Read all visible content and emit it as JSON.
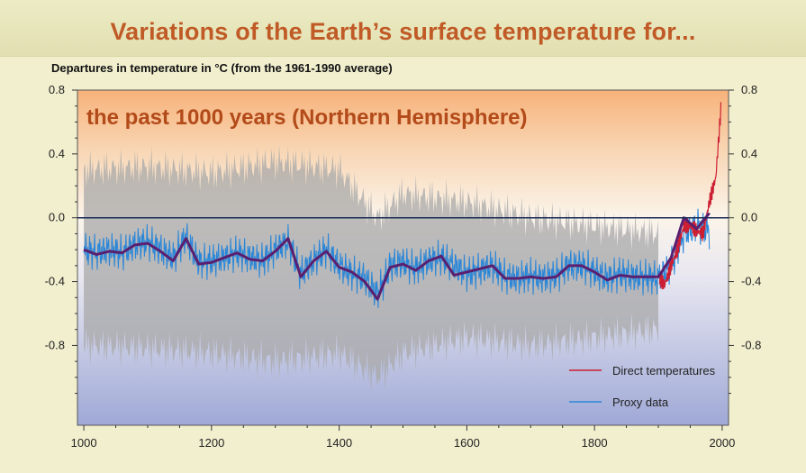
{
  "header": {
    "title": "Variations of the Earth’s surface temperature for...",
    "ylabel": "Departures in temperature in °C (from the 1961-1990 average)"
  },
  "chart_data": {
    "type": "line",
    "title": "Variations of the Earth’s surface temperature for...",
    "subtitle": "the past 1000 years (Northern Hemisphere)",
    "xlabel": "",
    "ylabel": "Departures in temperature in °C (from the 1961-1990 average)",
    "xlim": [
      990,
      2010
    ],
    "ylim": [
      -1.3,
      0.8
    ],
    "x_ticks": [
      1000,
      1200,
      1400,
      1600,
      1800,
      2000
    ],
    "x_tick_labels": [
      "1000",
      "1200",
      "1400",
      "1600",
      "1800",
      "2000"
    ],
    "y_ticks": [
      0.8,
      0.4,
      0.0,
      -0.4,
      -0.8
    ],
    "y_tick_labels": [
      "0.8",
      "0.4",
      "0.0",
      "-0.4",
      "-0.8"
    ],
    "legend": {
      "placement": "bottom-right"
    },
    "colors": {
      "direct": "#cc1f33",
      "proxy": "#2a86d8",
      "smoothed": "#5a1f6e",
      "uncertainty": "#a8a8a8",
      "zero_line": "#1a2a55"
    },
    "series": [
      {
        "name": "Proxy data",
        "x": [
          1000,
          1020,
          1040,
          1060,
          1080,
          1100,
          1120,
          1140,
          1160,
          1180,
          1200,
          1220,
          1240,
          1260,
          1280,
          1300,
          1320,
          1340,
          1360,
          1380,
          1400,
          1420,
          1440,
          1460,
          1480,
          1500,
          1520,
          1540,
          1560,
          1580,
          1600,
          1620,
          1640,
          1660,
          1680,
          1700,
          1720,
          1740,
          1760,
          1780,
          1800,
          1820,
          1840,
          1860,
          1880,
          1900,
          1920,
          1940,
          1960,
          1980
        ],
        "values": [
          -0.2,
          -0.22,
          -0.2,
          -0.22,
          -0.17,
          -0.15,
          -0.2,
          -0.25,
          -0.12,
          -0.28,
          -0.27,
          -0.25,
          -0.22,
          -0.25,
          -0.27,
          -0.2,
          -0.15,
          -0.35,
          -0.27,
          -0.2,
          -0.3,
          -0.35,
          -0.38,
          -0.48,
          -0.3,
          -0.28,
          -0.32,
          -0.27,
          -0.25,
          -0.3,
          -0.35,
          -0.33,
          -0.3,
          -0.37,
          -0.38,
          -0.36,
          -0.38,
          -0.36,
          -0.3,
          -0.3,
          -0.34,
          -0.38,
          -0.35,
          -0.37,
          -0.37,
          -0.38,
          -0.3,
          -0.1,
          -0.05,
          -0.08
        ]
      },
      {
        "name": "Direct temperatures",
        "x": [
          1902,
          1910,
          1920,
          1930,
          1940,
          1950,
          1960,
          1970,
          1980,
          1990,
          1998
        ],
        "values": [
          -0.38,
          -0.42,
          -0.3,
          -0.2,
          -0.05,
          -0.05,
          -0.08,
          -0.1,
          0.1,
          0.25,
          0.68
        ]
      },
      {
        "name": "",
        "role": "smoothed proxy",
        "x": [
          1000,
          1020,
          1040,
          1060,
          1080,
          1100,
          1120,
          1140,
          1160,
          1180,
          1200,
          1220,
          1240,
          1260,
          1280,
          1300,
          1320,
          1340,
          1360,
          1380,
          1400,
          1420,
          1440,
          1460,
          1480,
          1500,
          1520,
          1540,
          1560,
          1580,
          1600,
          1620,
          1640,
          1660,
          1680,
          1700,
          1720,
          1740,
          1760,
          1780,
          1800,
          1820,
          1840,
          1860,
          1880,
          1900,
          1920,
          1940,
          1960,
          1980
        ],
        "values": [
          -0.2,
          -0.23,
          -0.21,
          -0.22,
          -0.17,
          -0.16,
          -0.21,
          -0.27,
          -0.13,
          -0.29,
          -0.28,
          -0.25,
          -0.22,
          -0.26,
          -0.27,
          -0.21,
          -0.13,
          -0.37,
          -0.27,
          -0.21,
          -0.31,
          -0.34,
          -0.4,
          -0.51,
          -0.31,
          -0.29,
          -0.33,
          -0.27,
          -0.24,
          -0.36,
          -0.34,
          -0.32,
          -0.3,
          -0.38,
          -0.38,
          -0.37,
          -0.38,
          -0.37,
          -0.3,
          -0.3,
          -0.34,
          -0.39,
          -0.36,
          -0.37,
          -0.37,
          -0.37,
          -0.25,
          0.0,
          -0.07,
          0.03
        ]
      },
      {
        "name": "",
        "role": "uncertainty band",
        "x": [
          1000,
          1100,
          1200,
          1300,
          1400,
          1460,
          1500,
          1600,
          1700,
          1800,
          1900
        ],
        "upper": [
          0.3,
          0.32,
          0.28,
          0.35,
          0.3,
          0.0,
          0.15,
          0.1,
          0.0,
          -0.05,
          -0.1
        ],
        "lower": [
          -0.8,
          -0.82,
          -0.85,
          -0.9,
          -0.85,
          -1.0,
          -0.85,
          -0.75,
          -0.8,
          -0.75,
          -0.7
        ]
      }
    ]
  }
}
